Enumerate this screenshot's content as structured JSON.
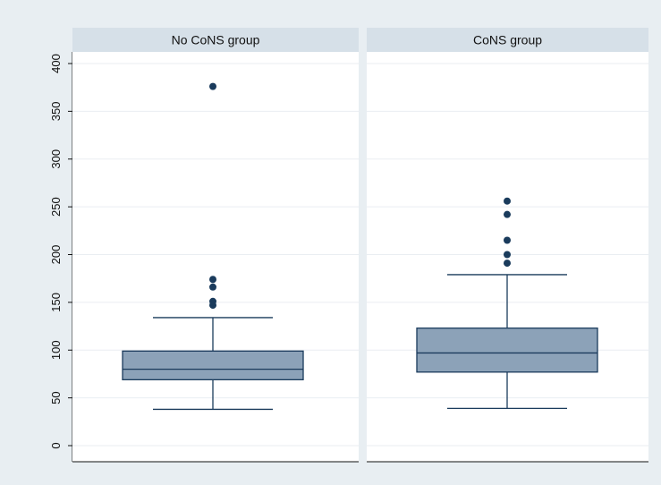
{
  "colors": {
    "outer_background": "#e8eef2",
    "panel_header": "#d6e0e8",
    "panel_background": "#ffffff",
    "gridline": "#eaeef2",
    "box_fill": "#8ca2b8",
    "box_stroke": "#1a3b5c",
    "outlier": "#1a3b5c"
  },
  "chart_data": {
    "type": "boxplot",
    "ylim": [
      0,
      400
    ],
    "y_ticks": [
      "0",
      "50",
      "100",
      "150",
      "200",
      "250",
      "300",
      "350",
      "400"
    ],
    "grid": true,
    "panels": [
      {
        "title": "No CoNS group",
        "whisker_low": 38,
        "q1": 69,
        "median": 80,
        "q3": 99,
        "whisker_high": 134,
        "outliers": [
          147,
          151,
          166,
          174,
          376
        ]
      },
      {
        "title": "CoNS group",
        "whisker_low": 39,
        "q1": 77,
        "median": 97,
        "q3": 123,
        "whisker_high": 179,
        "outliers": [
          191,
          200,
          215,
          242,
          256
        ]
      }
    ]
  }
}
